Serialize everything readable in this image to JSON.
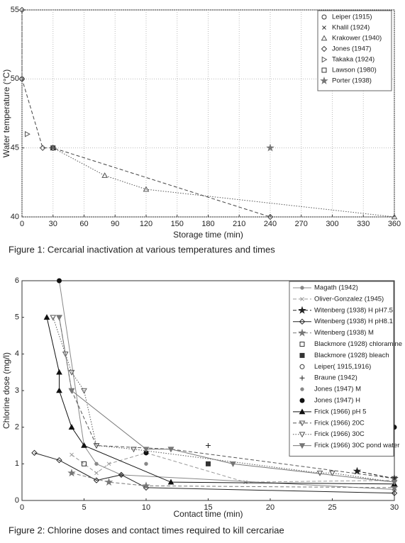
{
  "chart_data": [
    {
      "type": "line",
      "caption": "Figure 1: Cercarial inactivation at various temperatures and times",
      "xlabel": "Storage time (min)",
      "ylabel": "Water temperature (°C)",
      "xlim": [
        0,
        360
      ],
      "ylim": [
        40,
        55
      ],
      "xticks": [
        0,
        30,
        60,
        90,
        120,
        150,
        180,
        210,
        240,
        270,
        300,
        330,
        360
      ],
      "yticks": [
        40,
        45,
        50,
        55
      ],
      "grid": true,
      "legend": "upper right",
      "series": [
        {
          "name": "Leiper (1915)",
          "color": "#333333",
          "marker": "circle",
          "line": "none",
          "x": [
            0
          ],
          "values": [
            50
          ]
        },
        {
          "name": "Khalil (1924)",
          "color": "#333333",
          "marker": "x",
          "line": "none",
          "x": [
            30
          ],
          "values": [
            45
          ]
        },
        {
          "name": "Krakower (1940)",
          "color": "#555555",
          "marker": "triangle",
          "line": "dotted",
          "x": [
            30,
            80,
            120,
            360
          ],
          "values": [
            45,
            43,
            42,
            40
          ]
        },
        {
          "name": "Jones (1947)",
          "color": "#444444",
          "marker": "diamond",
          "line": "dashed",
          "x": [
            0,
            0,
            20,
            30,
            240
          ],
          "values": [
            55,
            50,
            45,
            45,
            40
          ]
        },
        {
          "name": "Takaka (1924)",
          "color": "#555555",
          "marker": "tri-right",
          "line": "none",
          "x": [
            5
          ],
          "values": [
            46
          ]
        },
        {
          "name": "Lawson (1980)",
          "color": "#333333",
          "marker": "square",
          "line": "none",
          "x": [
            30
          ],
          "values": [
            45
          ]
        },
        {
          "name": "Porter (1938)",
          "color": "#777777",
          "marker": "star",
          "line": "none",
          "x": [
            240
          ],
          "values": [
            45
          ]
        }
      ]
    },
    {
      "type": "line",
      "caption": "Figure 2: Chlorine doses and contact times required to kill cercariae",
      "xlabel": "Contact time (min)",
      "ylabel": "Chlorine dose (mg/l)",
      "xlim": [
        0,
        30
      ],
      "ylim": [
        0,
        6
      ],
      "xticks": [
        0,
        5,
        10,
        15,
        20,
        25,
        30
      ],
      "yticks": [
        0,
        1,
        2,
        3,
        4,
        5,
        6
      ],
      "grid": false,
      "legend": "upper right",
      "series": [
        {
          "name": "Magath (1942)",
          "color": "#888888",
          "marker": "dot",
          "line": "solid",
          "x": [
            3,
            5,
            6,
            8,
            30
          ],
          "values": [
            6,
            1.5,
            1,
            0.7,
            0.3
          ]
        },
        {
          "name": "Oliver-Gonzalez (1945)",
          "color": "#999999",
          "marker": "x",
          "line": "dashed",
          "x": [
            4,
            6,
            7,
            10,
            18,
            30
          ],
          "values": [
            1.25,
            0.75,
            1,
            1.3,
            0.5,
            0.55
          ]
        },
        {
          "name": "Witenberg (1938) H pH7.5",
          "color": "#222222",
          "marker": "star",
          "line": "dashed",
          "x": [
            27,
            30
          ],
          "values": [
            0.8,
            0.6
          ]
        },
        {
          "name": "Witenberg (1938) H pH8.1",
          "color": "#222222",
          "marker": "diamond",
          "line": "solid",
          "x": [
            1,
            3,
            6,
            8,
            10,
            30
          ],
          "values": [
            1.3,
            1.1,
            0.55,
            0.7,
            0.35,
            0.2
          ]
        },
        {
          "name": "Witenberg (1938) M",
          "color": "#777777",
          "marker": "star",
          "line": "dashed",
          "x": [
            4,
            7,
            10,
            30
          ],
          "values": [
            0.75,
            0.5,
            0.4,
            0.35
          ]
        },
        {
          "name": "Blackmore (1928) chloramine",
          "color": "#333333",
          "marker": "square",
          "line": "none",
          "x": [
            5
          ],
          "values": [
            1
          ]
        },
        {
          "name": "Blackmore (1928) bleach",
          "color": "#333333",
          "marker": "square-filled",
          "line": "none",
          "x": [
            15
          ],
          "values": [
            1
          ]
        },
        {
          "name": "Leiper( 1915,1916)",
          "color": "#333333",
          "marker": "circle",
          "line": "none",
          "x": [
            10
          ],
          "values": [
            1.3
          ]
        },
        {
          "name": "Braune (1942)",
          "color": "#222222",
          "marker": "plus",
          "line": "none",
          "x": [
            15
          ],
          "values": [
            1.5
          ]
        },
        {
          "name": "Jones (1947) M",
          "color": "#888888",
          "marker": "dot",
          "line": "none",
          "x": [
            10
          ],
          "values": [
            1
          ]
        },
        {
          "name": "Jones (1947) H",
          "color": "#111111",
          "marker": "circle-filled",
          "line": "none",
          "x": [
            3,
            10,
            30
          ],
          "values": [
            6,
            1.3,
            2
          ]
        },
        {
          "name": "Frick (1966) pH 5",
          "color": "#111111",
          "marker": "tri-filled",
          "line": "solid",
          "x": [
            2,
            3,
            3,
            4,
            5,
            12,
            30
          ],
          "values": [
            5,
            3.5,
            3,
            2,
            1.5,
            0.5,
            0.45
          ]
        },
        {
          "name": "Frick (1966) 20C",
          "color": "#555555",
          "marker": "tri-down",
          "line": "dashed",
          "x": [
            3,
            4,
            6,
            12,
            30
          ],
          "values": [
            5,
            3,
            1.5,
            1.4,
            0.6
          ]
        },
        {
          "name": "Frick (1966) 30C",
          "color": "#555555",
          "marker": "tri-down",
          "line": "dotted",
          "x": [
            2.5,
            3.5,
            4,
            5,
            6,
            9,
            24,
            25,
            30
          ],
          "values": [
            5,
            4,
            3.5,
            3,
            1.5,
            1.4,
            0.75,
            0.75,
            0.5
          ]
        },
        {
          "name": "Frick (1966) 30C pond water",
          "color": "#777777",
          "marker": "tri-down-filled",
          "line": "solid",
          "x": [
            3,
            4,
            10,
            12,
            17,
            30
          ],
          "values": [
            5,
            3,
            1.4,
            1.4,
            1,
            0.5
          ]
        }
      ]
    }
  ]
}
